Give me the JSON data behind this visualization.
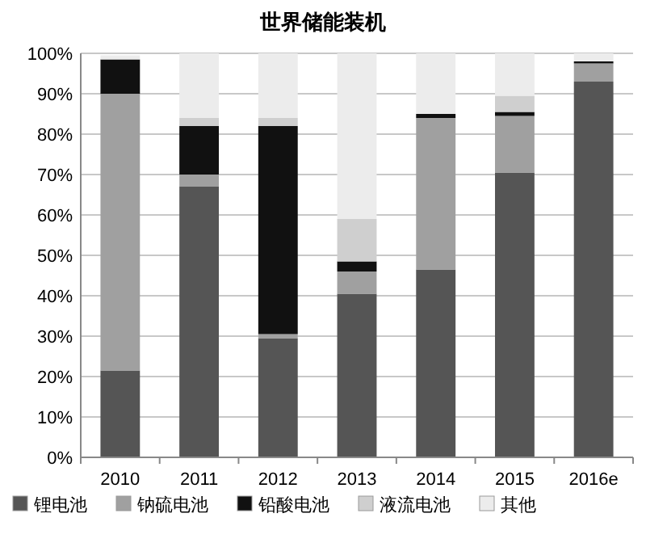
{
  "chart_data": {
    "type": "bar",
    "title": "世界储能装机",
    "stacked": true,
    "categories": [
      "2010",
      "2011",
      "2012",
      "2013",
      "2014",
      "2015",
      "2016e"
    ],
    "series": [
      {
        "name": "锂电池",
        "color": "#555555",
        "values": [
          21.5,
          67,
          29.5,
          40.5,
          46.5,
          70.5,
          93
        ]
      },
      {
        "name": "钠硫电池",
        "color": "#a0a0a0",
        "values": [
          68.5,
          3,
          1,
          5.5,
          37.5,
          14,
          4.5
        ]
      },
      {
        "name": "铅酸电池",
        "color": "#111111",
        "values": [
          8.5,
          12,
          51.5,
          2.5,
          1,
          1,
          0.5
        ]
      },
      {
        "name": "液流电池",
        "color": "#cfcfcf",
        "values": [
          null,
          2,
          2,
          10.5,
          0,
          4,
          0
        ]
      },
      {
        "name": "其他",
        "color": "#ececec",
        "values": [
          1,
          16,
          16,
          41,
          15,
          10.5,
          2
        ]
      }
    ],
    "ylim": [
      0,
      100
    ],
    "yticks": [
      {
        "value": 0,
        "label": "0%"
      },
      {
        "value": 10,
        "label": "10%"
      },
      {
        "value": 20,
        "label": "20%"
      },
      {
        "value": 30,
        "label": "30%"
      },
      {
        "value": 40,
        "label": "40%"
      },
      {
        "value": 50,
        "label": "50%"
      },
      {
        "value": 60,
        "label": "60%"
      },
      {
        "value": 70,
        "label": "70%"
      },
      {
        "value": 80,
        "label": "80%"
      },
      {
        "value": 90,
        "label": "90%"
      },
      {
        "value": 100,
        "label": "100%"
      }
    ],
    "grid": "y",
    "legend": "bottom"
  }
}
